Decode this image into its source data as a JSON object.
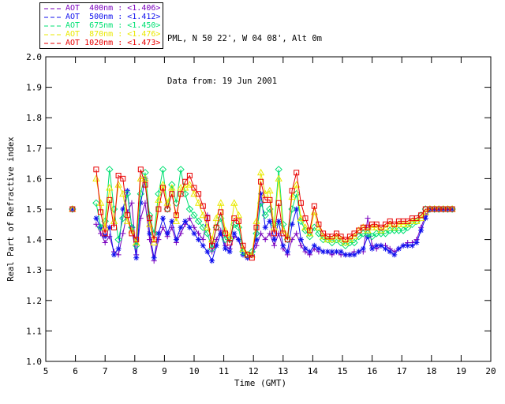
{
  "header": {
    "line1": "PML, N 50 22', W 04 08', Alt 0m",
    "line2": "Data from: 19 Jun 2001"
  },
  "chart_data": {
    "type": "line",
    "title": "",
    "xlabel": "Time (GMT)",
    "ylabel": "Real Part of Refractive index",
    "xlim": [
      5,
      20
    ],
    "ylim": [
      1.0,
      2.0
    ],
    "xticks": [
      5,
      6,
      7,
      8,
      9,
      10,
      11,
      12,
      13,
      14,
      15,
      16,
      17,
      18,
      19,
      20
    ],
    "yticks": [
      1.0,
      1.1,
      1.2,
      1.3,
      1.4,
      1.5,
      1.6,
      1.7,
      1.8,
      1.9,
      2.0
    ],
    "grid": "off",
    "legend_position": "outside-top-left",
    "isolated_point": {
      "x": 5.9,
      "y": 1.5,
      "note": "all five series overlap at this single point"
    },
    "x": [
      6.7,
      6.85,
      7.0,
      7.15,
      7.3,
      7.45,
      7.6,
      7.75,
      7.9,
      8.05,
      8.2,
      8.35,
      8.5,
      8.65,
      8.8,
      8.95,
      9.1,
      9.25,
      9.4,
      9.55,
      9.7,
      9.85,
      10.0,
      10.15,
      10.3,
      10.45,
      10.6,
      10.75,
      10.9,
      11.05,
      11.2,
      11.35,
      11.5,
      11.65,
      11.8,
      11.95,
      12.1,
      12.25,
      12.4,
      12.55,
      12.7,
      12.85,
      13.0,
      13.15,
      13.3,
      13.45,
      13.6,
      13.75,
      13.9,
      14.05,
      14.2,
      14.35,
      14.5,
      14.65,
      14.8,
      14.95,
      15.1,
      15.25,
      15.4,
      15.55,
      15.7,
      15.85,
      16.0,
      16.15,
      16.3,
      16.45,
      16.6,
      16.75,
      16.9,
      17.05,
      17.2,
      17.35,
      17.5,
      17.65,
      17.8,
      17.95,
      18.1,
      18.25,
      18.4,
      18.55,
      18.7
    ],
    "series": [
      {
        "name": "AOT 400nm",
        "legend_text": "AOT  400nm : <1.406>",
        "mean": "<1.406>",
        "color": "#7A00BE",
        "marker": "plus",
        "values": [
          1.45,
          1.42,
          1.39,
          1.41,
          1.36,
          1.35,
          1.42,
          1.49,
          1.52,
          1.35,
          1.47,
          1.52,
          1.4,
          1.33,
          1.4,
          1.44,
          1.41,
          1.44,
          1.39,
          1.42,
          1.45,
          1.47,
          1.44,
          1.42,
          1.4,
          1.48,
          1.36,
          1.4,
          1.43,
          1.38,
          1.37,
          1.41,
          1.4,
          1.35,
          1.34,
          1.35,
          1.38,
          1.42,
          1.4,
          1.42,
          1.38,
          1.42,
          1.37,
          1.35,
          1.4,
          1.42,
          1.38,
          1.36,
          1.35,
          1.37,
          1.36,
          1.36,
          1.36,
          1.35,
          1.36,
          1.35,
          1.35,
          1.35,
          1.36,
          1.36,
          1.36,
          1.47,
          1.38,
          1.37,
          1.38,
          1.38,
          1.37,
          1.36,
          1.37,
          1.38,
          1.39,
          1.39,
          1.4,
          1.44,
          1.48,
          1.5,
          1.5,
          1.5,
          1.5,
          1.5,
          1.5
        ]
      },
      {
        "name": "AOT 500nm",
        "legend_text": "AOT  500nm : <1.412>",
        "mean": "<1.412>",
        "color": "#1010EE",
        "marker": "asterisk",
        "values": [
          1.47,
          1.44,
          1.41,
          1.44,
          1.35,
          1.37,
          1.5,
          1.56,
          1.44,
          1.34,
          1.52,
          1.6,
          1.42,
          1.34,
          1.42,
          1.47,
          1.42,
          1.46,
          1.4,
          1.44,
          1.46,
          1.44,
          1.42,
          1.4,
          1.38,
          1.36,
          1.33,
          1.38,
          1.42,
          1.37,
          1.36,
          1.42,
          1.4,
          1.35,
          1.34,
          1.35,
          1.4,
          1.55,
          1.44,
          1.46,
          1.4,
          1.46,
          1.38,
          1.36,
          1.45,
          1.5,
          1.4,
          1.37,
          1.36,
          1.38,
          1.37,
          1.36,
          1.36,
          1.36,
          1.36,
          1.36,
          1.35,
          1.35,
          1.35,
          1.36,
          1.37,
          1.41,
          1.37,
          1.38,
          1.38,
          1.37,
          1.36,
          1.35,
          1.37,
          1.38,
          1.38,
          1.38,
          1.39,
          1.43,
          1.47,
          1.5,
          1.5,
          1.5,
          1.5,
          1.5,
          1.5
        ]
      },
      {
        "name": "AOT 675nm",
        "legend_text": "AOT  675nm : <1.450>",
        "mean": "<1.450>",
        "color": "#00E173",
        "marker": "diamond",
        "values": [
          1.52,
          1.44,
          1.46,
          1.63,
          1.5,
          1.4,
          1.47,
          1.55,
          1.44,
          1.38,
          1.55,
          1.62,
          1.48,
          1.42,
          1.55,
          1.63,
          1.5,
          1.58,
          1.52,
          1.63,
          1.55,
          1.5,
          1.48,
          1.46,
          1.44,
          1.42,
          1.37,
          1.44,
          1.47,
          1.4,
          1.4,
          1.45,
          1.44,
          1.36,
          1.35,
          1.36,
          1.42,
          1.52,
          1.48,
          1.5,
          1.45,
          1.63,
          1.45,
          1.4,
          1.5,
          1.55,
          1.46,
          1.43,
          1.41,
          1.44,
          1.42,
          1.4,
          1.4,
          1.39,
          1.4,
          1.39,
          1.38,
          1.39,
          1.39,
          1.41,
          1.42,
          1.42,
          1.41,
          1.42,
          1.42,
          1.42,
          1.43,
          1.43,
          1.43,
          1.43,
          1.44,
          1.45,
          1.46,
          1.48,
          1.5,
          1.5,
          1.5,
          1.5,
          1.5,
          1.5,
          1.5
        ]
      },
      {
        "name": "AOT 870nm",
        "legend_text": "AOT  870nm : <1.476>",
        "mean": "<1.476>",
        "color": "#E9E900",
        "marker": "triangle",
        "values": [
          1.6,
          1.52,
          1.44,
          1.57,
          1.46,
          1.58,
          1.55,
          1.46,
          1.43,
          1.39,
          1.6,
          1.6,
          1.45,
          1.39,
          1.53,
          1.58,
          1.52,
          1.57,
          1.46,
          1.57,
          1.57,
          1.58,
          1.55,
          1.52,
          1.48,
          1.44,
          1.4,
          1.47,
          1.52,
          1.43,
          1.41,
          1.52,
          1.48,
          1.37,
          1.35,
          1.35,
          1.46,
          1.62,
          1.55,
          1.56,
          1.44,
          1.6,
          1.43,
          1.41,
          1.54,
          1.58,
          1.47,
          1.44,
          1.42,
          1.49,
          1.44,
          1.41,
          1.4,
          1.4,
          1.41,
          1.4,
          1.39,
          1.4,
          1.41,
          1.43,
          1.44,
          1.43,
          1.44,
          1.44,
          1.43,
          1.44,
          1.45,
          1.44,
          1.45,
          1.45,
          1.45,
          1.46,
          1.46,
          1.47,
          1.49,
          1.5,
          1.5,
          1.5,
          1.5,
          1.5,
          1.5
        ]
      },
      {
        "name": "AOT 1020nm",
        "legend_text": "AOT 1020nm : <1.473>",
        "mean": "<1.473>",
        "color": "#E80000",
        "marker": "square",
        "values": [
          1.63,
          1.49,
          1.42,
          1.53,
          1.44,
          1.61,
          1.6,
          1.48,
          1.42,
          1.4,
          1.63,
          1.58,
          1.47,
          1.4,
          1.5,
          1.57,
          1.5,
          1.55,
          1.48,
          1.55,
          1.59,
          1.61,
          1.57,
          1.55,
          1.51,
          1.47,
          1.38,
          1.44,
          1.49,
          1.42,
          1.39,
          1.47,
          1.46,
          1.38,
          1.35,
          1.34,
          1.44,
          1.59,
          1.53,
          1.53,
          1.42,
          1.52,
          1.42,
          1.4,
          1.56,
          1.62,
          1.52,
          1.47,
          1.43,
          1.51,
          1.45,
          1.42,
          1.41,
          1.41,
          1.42,
          1.41,
          1.4,
          1.41,
          1.42,
          1.43,
          1.44,
          1.44,
          1.45,
          1.45,
          1.44,
          1.45,
          1.46,
          1.45,
          1.46,
          1.46,
          1.46,
          1.47,
          1.47,
          1.48,
          1.5,
          1.5,
          1.5,
          1.5,
          1.5,
          1.5,
          1.5
        ]
      }
    ]
  }
}
